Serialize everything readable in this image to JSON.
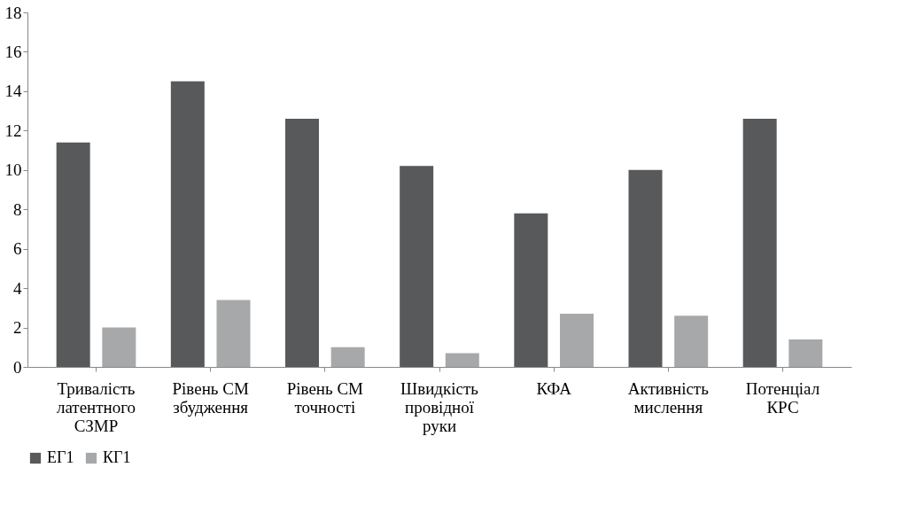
{
  "chart_data": {
    "type": "bar",
    "categories": [
      "Тривалість\nлатентного\nСЗМР",
      "Рівень СМ\nзбудження",
      "Рівень СМ\nточності",
      "Швидкість\nпровідної\nруки",
      "КФА",
      "Активність\nмислення",
      "Потенціал\nКРС"
    ],
    "series": [
      {
        "name": "ЕГ1",
        "color": "#58595b",
        "values": [
          11.4,
          14.5,
          12.6,
          10.2,
          7.8,
          10.0,
          12.6
        ]
      },
      {
        "name": "КГ1",
        "color": "#a6a8aa",
        "values": [
          2.0,
          3.4,
          1.0,
          0.7,
          2.7,
          2.6,
          1.4
        ]
      }
    ],
    "ylim": [
      0,
      18
    ],
    "yticks": [
      0,
      2,
      4,
      6,
      8,
      10,
      12,
      14,
      16,
      18
    ],
    "grid": false,
    "legend": "bottom"
  }
}
